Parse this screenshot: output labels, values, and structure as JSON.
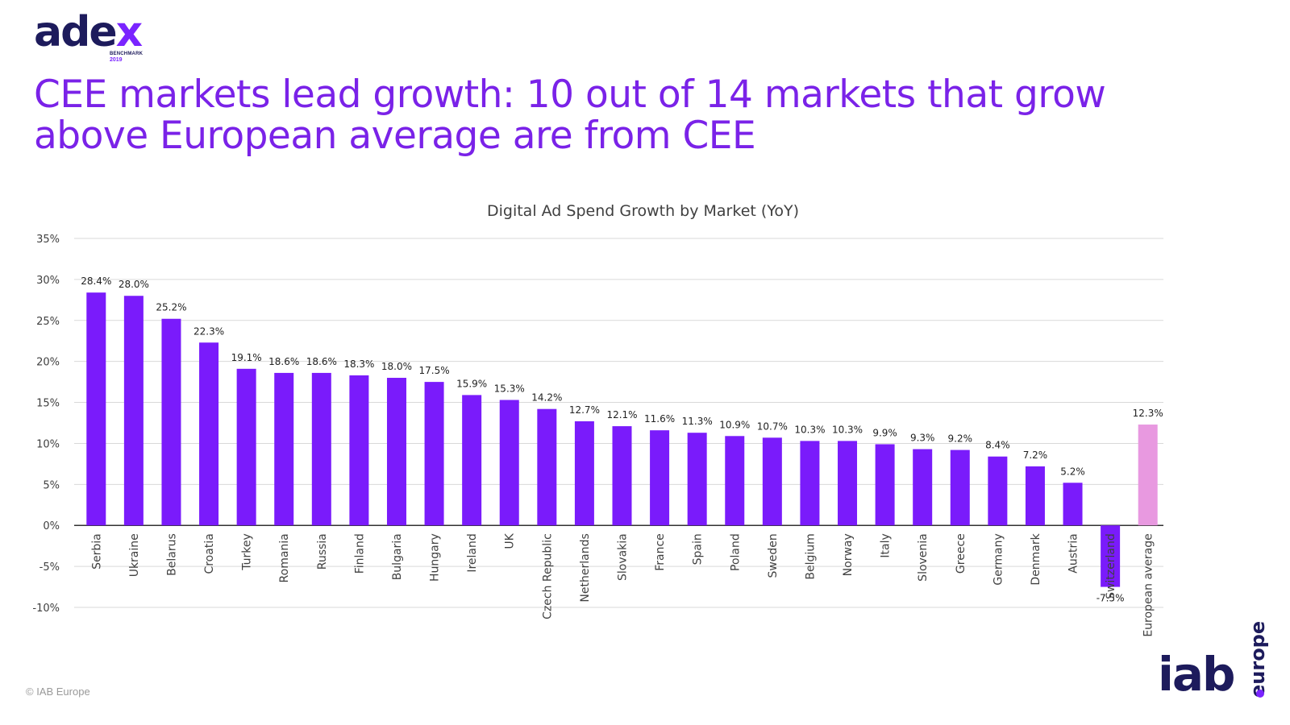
{
  "logo": {
    "word_main": "ade",
    "word_accent": "x",
    "sub": "BENCHMARK",
    "year": "2019"
  },
  "headline": "CEE markets lead growth: 10 out of 14 markets that grow above European average are from CEE",
  "copyright": "© IAB Europe",
  "iab_logo": {
    "word": "iab",
    "suffix": "europe"
  },
  "chart_data": {
    "type": "bar",
    "title": "Digital Ad Spend Growth by Market (YoY)",
    "xlabel": "",
    "ylabel": "",
    "ylim": [
      -10,
      35
    ],
    "yticks": [
      -10,
      -5,
      0,
      5,
      10,
      15,
      20,
      25,
      30,
      35
    ],
    "grid": true,
    "legend": "none",
    "categories": [
      "Serbia",
      "Ukraine",
      "Belarus",
      "Croatia",
      "Turkey",
      "Romania",
      "Russia",
      "Finland",
      "Bulgaria",
      "Hungary",
      "Ireland",
      "UK",
      "Czech Republic",
      "Netherlands",
      "Slovakia",
      "France",
      "Spain",
      "Poland",
      "Sweden",
      "Belgium",
      "Norway",
      "Italy",
      "Slovenia",
      "Greece",
      "Germany",
      "Denmark",
      "Austria",
      "Switzerland",
      "European average"
    ],
    "values": [
      28.4,
      28.0,
      25.2,
      22.3,
      19.1,
      18.6,
      18.6,
      18.3,
      18.0,
      17.5,
      15.9,
      15.3,
      14.2,
      12.7,
      12.1,
      11.6,
      11.3,
      10.9,
      10.7,
      10.3,
      10.3,
      9.9,
      9.3,
      9.2,
      8.4,
      7.2,
      5.2,
      -7.5,
      12.3
    ],
    "labels": [
      "28.4%",
      "28.0%",
      "25.2%",
      "22.3%",
      "19.1%",
      "18.6%",
      "18.6%",
      "18.3%",
      "18.0%",
      "17.5%",
      "15.9%",
      "15.3%",
      "14.2%",
      "12.7%",
      "12.1%",
      "11.6%",
      "11.3%",
      "10.9%",
      "10.7%",
      "10.3%",
      "10.3%",
      "9.9%",
      "9.3%",
      "9.2%",
      "8.4%",
      "7.2%",
      "5.2%",
      "-7.5%",
      "12.3%"
    ],
    "colors": {
      "bar": "#7a1bfb",
      "highlight": "#e899e0",
      "grid": "#d9d9d9",
      "axis": "#333333",
      "text": "#404040"
    }
  }
}
